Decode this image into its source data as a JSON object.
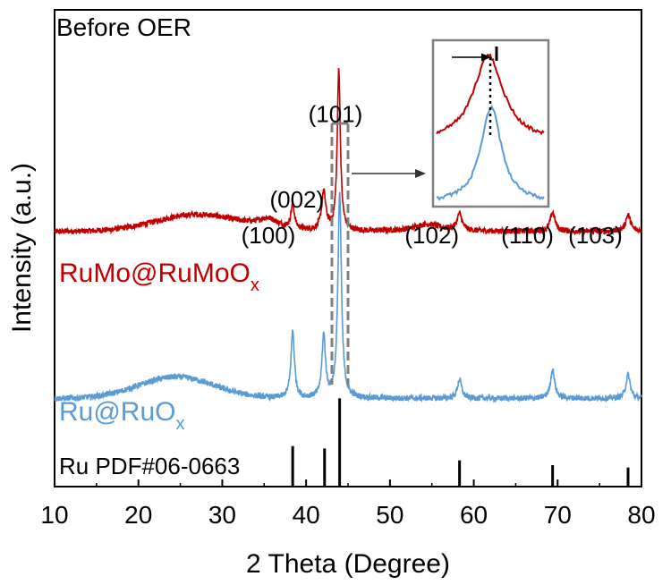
{
  "chart_data": {
    "type": "line",
    "title": "Before OER",
    "xlabel": "2 Theta (Degree)",
    "ylabel": "Intensity (a.u.)",
    "xlim": [
      10,
      80
    ],
    "ylim": [
      0,
      1
    ],
    "x_ticks": [
      10,
      20,
      30,
      40,
      50,
      60,
      70,
      80
    ],
    "grid": false,
    "colors": {
      "rumo": "#c00000",
      "ru": "#5b9bd5",
      "ref": "#000000",
      "dash": "#808080"
    },
    "series": [
      {
        "key": "rumo",
        "name": "RuMo@RuMoOx",
        "label_main": "RuMo@RuMoO",
        "label_sub": "x",
        "color": "#c00000",
        "baseline": 0.535,
        "hump": {
          "center": 27,
          "width": 5,
          "height": 0.035
        },
        "peaks": [
          {
            "x": 35.5,
            "h": 0.02,
            "w": 1.5
          },
          {
            "x": 38.4,
            "h": 0.05,
            "w": 0.25
          },
          {
            "x": 42.1,
            "h": 0.08,
            "w": 0.3
          },
          {
            "x": 43.9,
            "h": 0.34,
            "w": 0.22
          },
          {
            "x": 54.5,
            "h": 0.015,
            "w": 2.0
          },
          {
            "x": 58.3,
            "h": 0.035,
            "w": 0.35
          },
          {
            "x": 69.4,
            "h": 0.04,
            "w": 0.35
          },
          {
            "x": 78.4,
            "h": 0.035,
            "w": 0.35
          }
        ]
      },
      {
        "key": "ru",
        "name": "Ru@RuOx",
        "label_main": "Ru@RuO",
        "label_sub": "x",
        "color": "#5b9bd5",
        "baseline": 0.185,
        "hump": {
          "center": 24.5,
          "width": 4.5,
          "height": 0.045
        },
        "peaks": [
          {
            "x": 38.4,
            "h": 0.14,
            "w": 0.25
          },
          {
            "x": 42.1,
            "h": 0.13,
            "w": 0.25
          },
          {
            "x": 44.0,
            "h": 0.43,
            "w": 0.25
          },
          {
            "x": 58.3,
            "h": 0.04,
            "w": 0.3
          },
          {
            "x": 69.4,
            "h": 0.06,
            "w": 0.3
          },
          {
            "x": 78.4,
            "h": 0.05,
            "w": 0.3
          }
        ]
      }
    ],
    "reference": {
      "name": "Ru PDF#06-0663",
      "sticks": [
        {
          "x": 38.4,
          "h": 0.085
        },
        {
          "x": 42.2,
          "h": 0.08
        },
        {
          "x": 44.0,
          "h": 0.185
        },
        {
          "x": 58.3,
          "h": 0.055
        },
        {
          "x": 69.4,
          "h": 0.045
        },
        {
          "x": 78.4,
          "h": 0.04
        }
      ]
    },
    "peak_labels": [
      {
        "text": "(100)",
        "x": 35.5,
        "y": 0.51
      },
      {
        "text": "(002)",
        "x": 38.9,
        "y": 0.585
      },
      {
        "text": "(101)",
        "x": 43.5,
        "y": 0.765
      },
      {
        "text": "(102)",
        "x": 55.0,
        "y": 0.51
      },
      {
        "text": "(110)",
        "x": 66.4,
        "y": 0.51
      },
      {
        "text": "(103)",
        "x": 74.5,
        "y": 0.51
      }
    ],
    "inset": {
      "note": "zoom of the (101) peak, RuMo@RuMoOx shifted to lower angle"
    }
  }
}
